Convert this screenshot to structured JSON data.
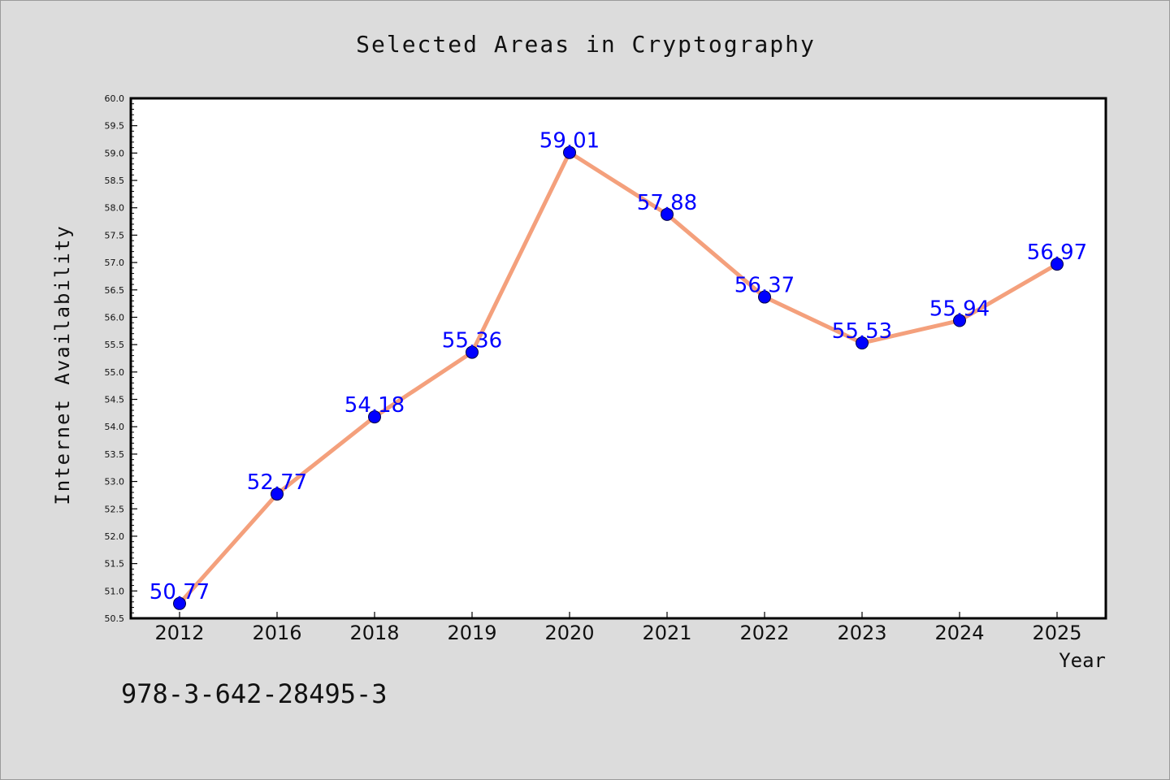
{
  "chart_data": {
    "type": "line",
    "title": "Selected Areas in Cryptography",
    "xlabel": "Year",
    "ylabel": "Internet Availability",
    "categories": [
      "2012",
      "2016",
      "2018",
      "2019",
      "2020",
      "2021",
      "2022",
      "2023",
      "2024",
      "2025"
    ],
    "series": [
      {
        "values": [
          50.77,
          52.77,
          54.18,
          55.36,
          59.01,
          57.88,
          56.37,
          55.53,
          55.94,
          56.97
        ],
        "labels": [
          "50.77",
          "52.77",
          "54.18",
          "55.36",
          "59.01",
          "57.88",
          "56.37",
          "55.53",
          "55.94",
          "56.97"
        ],
        "line_color": "#f4a07c",
        "marker_color": "#0000ff"
      }
    ],
    "ylim": [
      50.5,
      60.0
    ],
    "yticks": [
      "50.5",
      "51.0",
      "51.5",
      "52.0",
      "52.5",
      "53.0",
      "53.5",
      "54.0",
      "54.5",
      "55.0",
      "55.5",
      "56.0",
      "56.5",
      "57.0",
      "57.5",
      "58.0",
      "58.5",
      "59.0",
      "59.5",
      "60.0"
    ],
    "grid": false,
    "legend": "none"
  },
  "footer": {
    "isbn": "978-3-642-28495-3"
  },
  "colors": {
    "background": "#dcdcdc",
    "plot_background": "#ffffff",
    "line": "#f4a07c",
    "marker": "#0000ff",
    "label": "#0000ff"
  }
}
